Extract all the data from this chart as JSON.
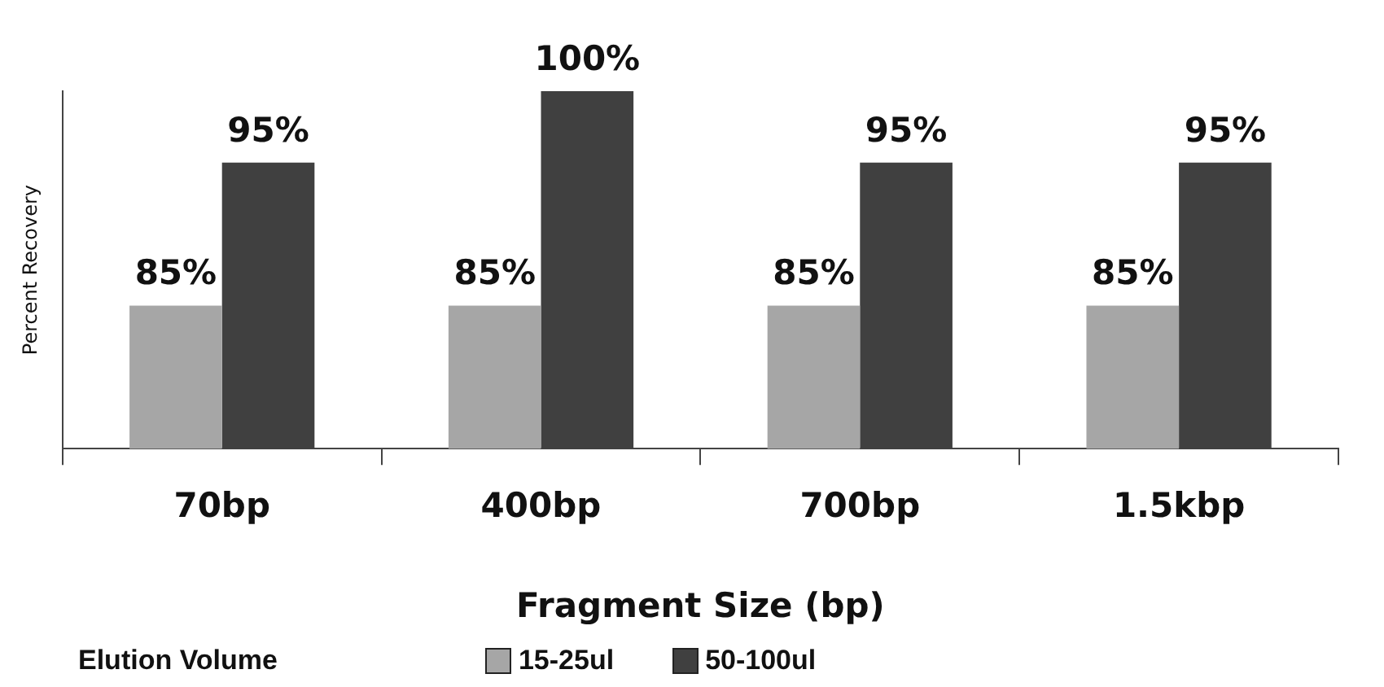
{
  "chart_data": {
    "type": "bar",
    "xlabel": "Fragment Size (bp)",
    "ylabel": "Percent Recovery",
    "legend_title": "Elution Volume",
    "legend": "bottom",
    "categories": [
      "70bp",
      "400bp",
      "700bp",
      "1.5kbp"
    ],
    "ylim": [
      75,
      100
    ],
    "tick_labels": "x",
    "series": [
      {
        "name": "15-25ul",
        "color": "#a6a6a6",
        "values": [
          85,
          85,
          85,
          85
        ],
        "value_labels": [
          "85%",
          "85%",
          "85%",
          "85%"
        ]
      },
      {
        "name": "50-100ul",
        "color": "#404040",
        "values": [
          95,
          100,
          95,
          95
        ],
        "value_labels": [
          "95%",
          "100%",
          "95%",
          "95%"
        ]
      }
    ]
  }
}
